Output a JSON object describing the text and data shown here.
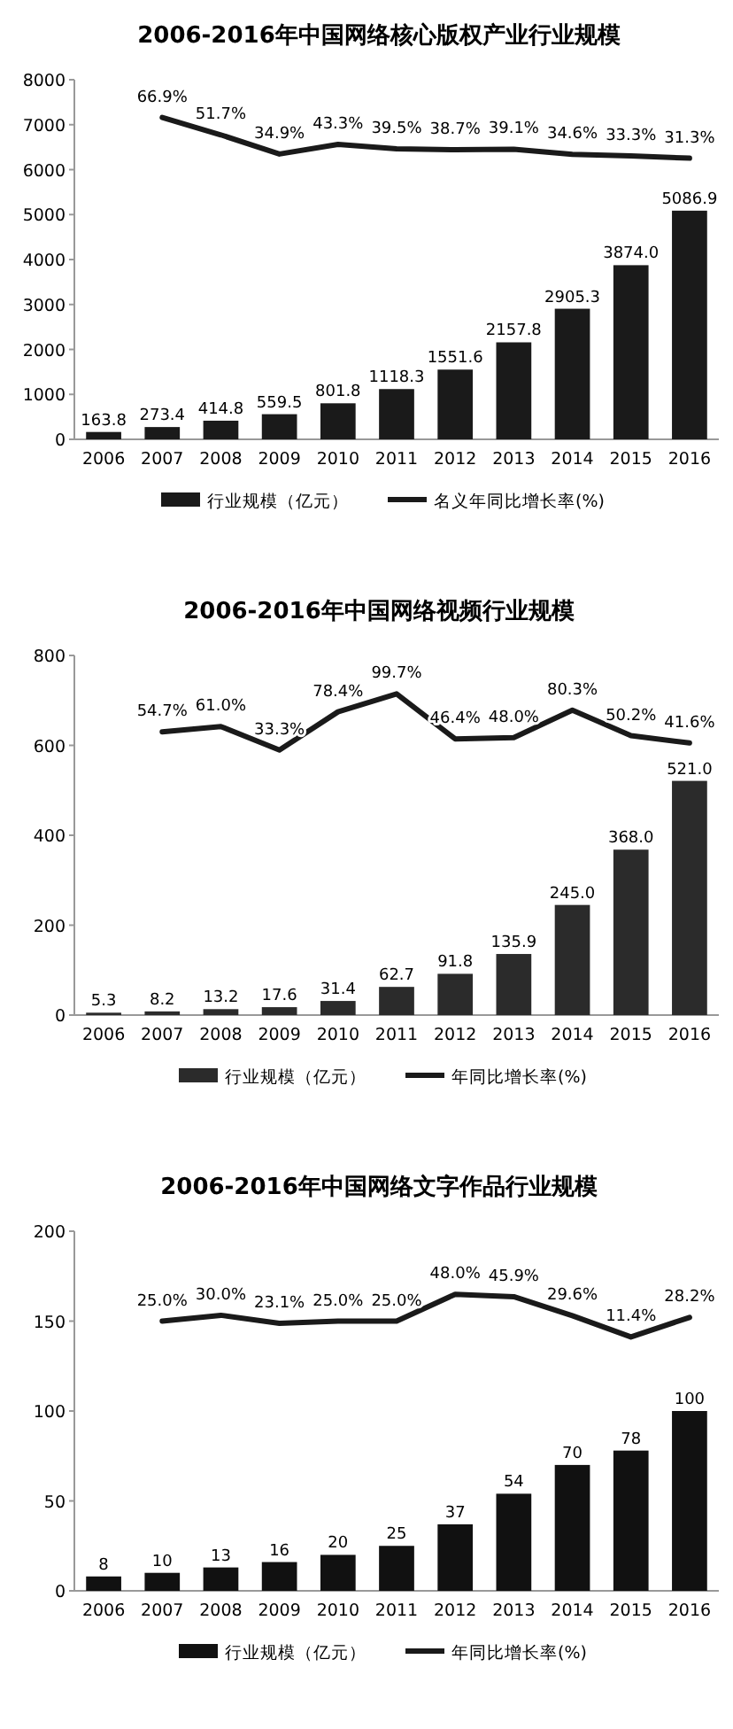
{
  "chart_data": [
    {
      "type": "bar",
      "title": "2006-2016年中国网络核心版权产业行业规模",
      "categories": [
        "2006",
        "2007",
        "2008",
        "2009",
        "2010",
        "2011",
        "2012",
        "2013",
        "2014",
        "2015",
        "2016"
      ],
      "ylim": [
        0,
        8000
      ],
      "yticks": [
        0,
        1000,
        2000,
        3000,
        4000,
        5000,
        6000,
        7000,
        8000
      ],
      "y2lim": [
        -215,
        100
      ],
      "legend": "bottom",
      "series": [
        {
          "name": "行业规模（亿元）",
          "color": "#1a1a1a",
          "values": [
            163.8,
            273.4,
            414.8,
            559.5,
            801.8,
            1118.3,
            1551.6,
            2157.8,
            2905.3,
            3874.0,
            5086.9
          ],
          "value_labels": [
            "163.8",
            "273.4",
            "414.8",
            "559.5",
            "801.8",
            "1118.3",
            "1551.6",
            "2157.8",
            "2905.3",
            "3874.0",
            "5086.9"
          ]
        },
        {
          "name": "名义年同比增长率(%)",
          "type": "line",
          "axis": "y2",
          "color": "#1a1a1a",
          "values": [
            null,
            66.9,
            51.7,
            34.9,
            43.3,
            39.5,
            38.7,
            39.1,
            34.6,
            33.3,
            31.3
          ],
          "value_labels": [
            null,
            "66.9%",
            "51.7%",
            "34.9%",
            "43.3%",
            "39.5%",
            "38.7%",
            "39.1%",
            "34.6%",
            "33.3%",
            "31.3%"
          ]
        }
      ]
    },
    {
      "type": "bar",
      "title": "2006-2016年中国网络视频行业规模",
      "categories": [
        "2006",
        "2007",
        "2008",
        "2009",
        "2010",
        "2011",
        "2012",
        "2013",
        "2014",
        "2015",
        "2016"
      ],
      "ylim": [
        0,
        800
      ],
      "yticks": [
        0,
        200,
        400,
        600,
        800
      ],
      "y2lim": [
        -280,
        145
      ],
      "legend": "bottom",
      "series": [
        {
          "name": "行业规模（亿元）",
          "color": "#2b2b2b",
          "values": [
            5.3,
            8.2,
            13.2,
            17.6,
            31.4,
            62.7,
            91.8,
            135.9,
            245.0,
            368.0,
            521.0
          ],
          "value_labels": [
            "5.3",
            "8.2",
            "13.2",
            "17.6",
            "31.4",
            "62.7",
            "91.8",
            "135.9",
            "245.0",
            "368.0",
            "521.0"
          ]
        },
        {
          "name": "年同比增长率(%)",
          "type": "line",
          "axis": "y2",
          "color": "#1a1a1a",
          "values": [
            null,
            54.7,
            61.0,
            33.3,
            78.4,
            99.7,
            46.4,
            48.0,
            80.3,
            50.2,
            41.6
          ],
          "value_labels": [
            null,
            "54.7%",
            "61.0%",
            "33.3%",
            "78.4%",
            "99.7%",
            "46.4%",
            "48.0%",
            "80.3%",
            "50.2%",
            "41.6%"
          ]
        }
      ]
    },
    {
      "type": "bar",
      "title": "2006-2016年中国网络文字作品行业规模",
      "categories": [
        "2006",
        "2007",
        "2008",
        "2009",
        "2010",
        "2011",
        "2012",
        "2013",
        "2014",
        "2015",
        "2016"
      ],
      "ylim": [
        0,
        200
      ],
      "yticks": [
        0,
        50,
        100,
        150,
        200
      ],
      "y2lim": [
        -206,
        102
      ],
      "legend": "bottom",
      "series": [
        {
          "name": "行业规模（亿元）",
          "color": "#111111",
          "values": [
            8,
            10,
            13,
            16,
            20,
            25,
            37,
            54,
            70,
            78,
            100
          ],
          "value_labels": [
            "8",
            "10",
            "13",
            "16",
            "20",
            "25",
            "37",
            "54",
            "70",
            "78",
            "100"
          ]
        },
        {
          "name": "年同比增长率(%)",
          "type": "line",
          "axis": "y2",
          "color": "#1a1a1a",
          "values": [
            null,
            25.0,
            30.0,
            23.1,
            25.0,
            25.0,
            48.0,
            45.9,
            29.6,
            11.4,
            28.2
          ],
          "value_labels": [
            null,
            "25.0%",
            "30.0%",
            "23.1%",
            "25.0%",
            "25.0%",
            "48.0%",
            "45.9%",
            "29.6%",
            "11.4%",
            "28.2%"
          ]
        }
      ]
    }
  ]
}
